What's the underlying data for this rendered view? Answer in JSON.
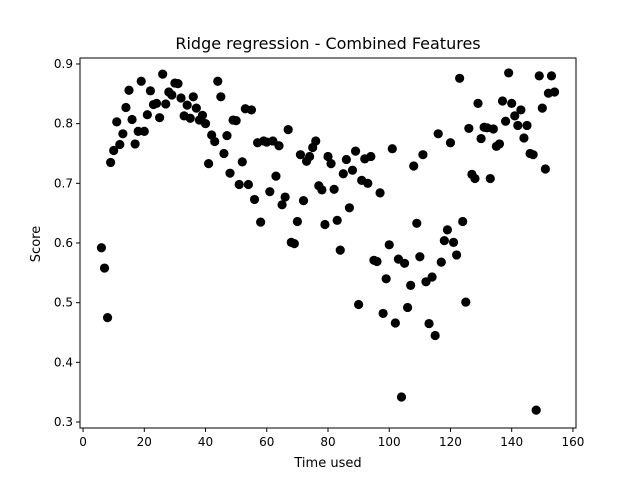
{
  "chart_data": {
    "type": "scatter",
    "title": "Ridge regression - Combined Features",
    "xlabel": "Time used",
    "ylabel": "Score",
    "xlim": [
      -1,
      161
    ],
    "ylim": [
      0.29,
      0.91
    ],
    "xticks": [
      0,
      20,
      40,
      60,
      80,
      100,
      120,
      140,
      160
    ],
    "yticks": [
      0.3,
      0.4,
      0.5,
      0.6,
      0.7,
      0.8,
      0.9
    ],
    "grid": false,
    "marker_color": "#000000",
    "series": [
      {
        "x": [
          6,
          7,
          8,
          9,
          10,
          11,
          12,
          13,
          14,
          15,
          16,
          17,
          18,
          19,
          20,
          21,
          22,
          23,
          24,
          25,
          26,
          27,
          28,
          29,
          30,
          31,
          32,
          33,
          34,
          35,
          36,
          37,
          38,
          39,
          40,
          41,
          42,
          43,
          44,
          45,
          46,
          47,
          48,
          49,
          50,
          51,
          52,
          53,
          54,
          55,
          56,
          57,
          58,
          59,
          60,
          61,
          62,
          63,
          64,
          65,
          66,
          67,
          68,
          69,
          70,
          71,
          72,
          73,
          74,
          75,
          76,
          77,
          78,
          79,
          80,
          81,
          82,
          83,
          84,
          85,
          86,
          87,
          88,
          89,
          90,
          91,
          92,
          93,
          94,
          95,
          96,
          97,
          98,
          99,
          100,
          101,
          102,
          103,
          104,
          105,
          106,
          107,
          108,
          109,
          110,
          111,
          112,
          113,
          114,
          115,
          116,
          117,
          118,
          119,
          120,
          121,
          122,
          123,
          124,
          125,
          126,
          127,
          128,
          129,
          130,
          131,
          132,
          133,
          134,
          135,
          136,
          137,
          138,
          139,
          140,
          141,
          142,
          143,
          144,
          145,
          146,
          147,
          148,
          149,
          150,
          151,
          152,
          153,
          154
        ],
        "y": [
          0.592,
          0.558,
          0.475,
          0.735,
          0.755,
          0.803,
          0.765,
          0.783,
          0.827,
          0.856,
          0.807,
          0.766,
          0.787,
          0.871,
          0.787,
          0.815,
          0.855,
          0.832,
          0.834,
          0.81,
          0.883,
          0.833,
          0.853,
          0.848,
          0.868,
          0.867,
          0.843,
          0.813,
          0.831,
          0.809,
          0.845,
          0.826,
          0.806,
          0.814,
          0.8,
          0.733,
          0.781,
          0.77,
          0.871,
          0.845,
          0.75,
          0.78,
          0.717,
          0.806,
          0.805,
          0.698,
          0.736,
          0.825,
          0.698,
          0.823,
          0.673,
          0.768,
          0.635,
          0.771,
          0.769,
          0.686,
          0.771,
          0.712,
          0.763,
          0.664,
          0.677,
          0.79,
          0.601,
          0.599,
          0.636,
          0.748,
          0.671,
          0.737,
          0.745,
          0.76,
          0.771,
          0.696,
          0.689,
          0.631,
          0.745,
          0.733,
          0.69,
          0.638,
          0.588,
          0.716,
          0.74,
          0.659,
          0.722,
          0.754,
          0.497,
          0.705,
          0.741,
          0.7,
          0.745,
          0.571,
          0.569,
          0.684,
          0.482,
          0.54,
          0.597,
          0.758,
          0.466,
          0.573,
          0.342,
          0.566,
          0.492,
          0.529,
          0.729,
          0.633,
          0.577,
          0.748,
          0.535,
          0.465,
          0.543,
          0.445,
          0.783,
          0.568,
          0.604,
          0.622,
          0.768,
          0.601,
          0.58,
          0.876,
          0.636,
          0.501,
          0.792,
          0.715,
          0.708,
          0.834,
          0.775,
          0.794,
          0.793,
          0.708,
          0.791,
          0.762,
          0.766,
          0.838,
          0.804,
          0.885,
          0.834,
          0.813,
          0.797,
          0.823,
          0.776,
          0.797,
          0.75,
          0.748,
          0.32,
          0.88,
          0.826,
          0.724,
          0.851,
          0.88,
          0.853
        ]
      }
    ]
  }
}
